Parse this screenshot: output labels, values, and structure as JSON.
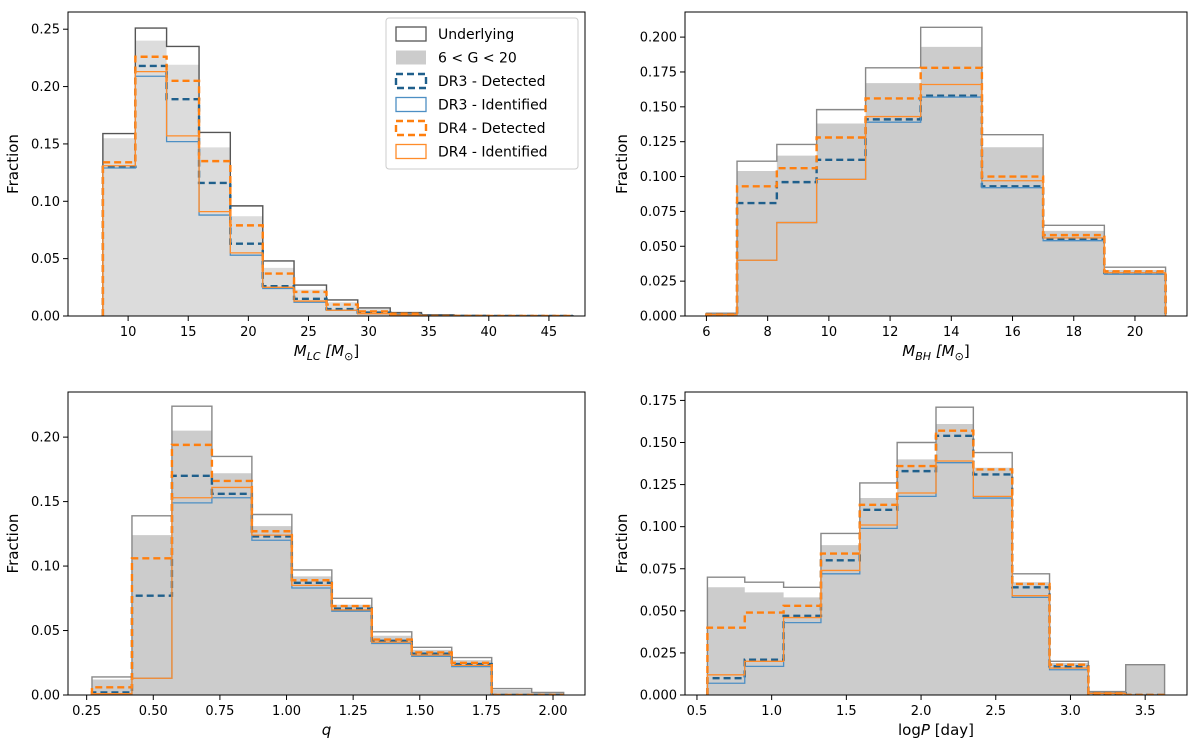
{
  "chart_data": [
    {
      "type": "bar",
      "panel": "top-left",
      "xlabel": "M_LC [M_sun]",
      "xlabel_main": "M",
      "xlabel_sub": "LC",
      "xlabel_unit": "[M",
      "xlabel_unit_sub": "⊙",
      "xlabel_close": "]",
      "ylabel": "Fraction",
      "xlim": [
        5,
        48
      ],
      "ylim": [
        0,
        0.265
      ],
      "xticks": [
        10,
        15,
        20,
        25,
        30,
        35,
        40,
        45
      ],
      "yticks": [
        0.0,
        0.05,
        0.1,
        0.15,
        0.2,
        0.25
      ],
      "ytick_labels": [
        "0.00",
        "0.05",
        "0.10",
        "0.15",
        "0.20",
        "0.25"
      ],
      "bin_edges": [
        7.9,
        10.6,
        13.2,
        15.9,
        18.5,
        21.2,
        23.8,
        26.5,
        29.1,
        31.8,
        34.4,
        37.1,
        39.7,
        42.4,
        45.0,
        47.0
      ],
      "series": [
        {
          "name": "Underlying",
          "style": "step",
          "color": "#555555",
          "dash": false,
          "width": 1.4,
          "values": [
            0.159,
            0.251,
            0.235,
            0.16,
            0.096,
            0.048,
            0.027,
            0.014,
            0.007,
            0.003,
            0.001,
            0.0005,
            0.0003,
            0.0002,
            0.0001
          ]
        },
        {
          "name": "6 < G < 20",
          "style": "fill",
          "color": "#dcdcdc",
          "values": [
            0.155,
            0.24,
            0.219,
            0.147,
            0.087,
            0.042,
            0.023,
            0.012,
            0.006,
            0.003,
            0.001,
            0.0005,
            0.0003,
            0.0002,
            0.0001
          ]
        },
        {
          "name": "DR3 - Detected",
          "style": "step",
          "color": "#1f5f8b",
          "dash": true,
          "width": 2.4,
          "values": [
            0.13,
            0.218,
            0.189,
            0.116,
            0.063,
            0.026,
            0.015,
            0.006,
            0.003,
            0.001,
            0.0,
            0.0,
            0.0,
            0.0,
            0.0
          ]
        },
        {
          "name": "DR3 - Identified",
          "style": "step",
          "color": "#4d8fc4",
          "dash": false,
          "width": 1.3,
          "values": [
            0.129,
            0.209,
            0.152,
            0.088,
            0.053,
            0.024,
            0.012,
            0.005,
            0.002,
            0.0008,
            0.0,
            0.0,
            0.0,
            0.0,
            0.0
          ]
        },
        {
          "name": "DR4 - Detected",
          "style": "step",
          "color": "#ff7f0e",
          "dash": true,
          "width": 2.4,
          "values": [
            0.134,
            0.226,
            0.205,
            0.135,
            0.079,
            0.037,
            0.021,
            0.01,
            0.004,
            0.002,
            0.0,
            0.0,
            0.0,
            0.0,
            0.0
          ]
        },
        {
          "name": "DR4 - Identified",
          "style": "step",
          "color": "#ff8c2a",
          "dash": false,
          "width": 1.3,
          "values": [
            0.131,
            0.213,
            0.157,
            0.091,
            0.055,
            0.025,
            0.013,
            0.005,
            0.002,
            0.0008,
            0.0,
            0.0,
            0.0,
            0.0,
            0.0
          ]
        }
      ]
    },
    {
      "type": "bar",
      "panel": "top-right",
      "xlabel": "M_BH [M_sun]",
      "xlabel_main": "M",
      "xlabel_sub": "BH",
      "xlabel_unit": "[M",
      "xlabel_unit_sub": "⊙",
      "xlabel_close": "]",
      "ylabel": "Fraction",
      "xlim": [
        5.3,
        21.7
      ],
      "ylim": [
        0,
        0.218
      ],
      "xticks": [
        6,
        8,
        10,
        12,
        14,
        16,
        18,
        20
      ],
      "yticks": [
        0.0,
        0.025,
        0.05,
        0.075,
        0.1,
        0.125,
        0.15,
        0.175,
        0.2
      ],
      "ytick_labels": [
        "0.000",
        "0.025",
        "0.050",
        "0.075",
        "0.100",
        "0.125",
        "0.150",
        "0.175",
        "0.200"
      ],
      "bin_edges": [
        6.0,
        7.0,
        8.3,
        9.6,
        11.2,
        13.0,
        15.0,
        17.0,
        19.0,
        21.0
      ],
      "series": [
        {
          "name": "Underlying",
          "style": "step",
          "color": "#888888",
          "dash": false,
          "width": 1.4,
          "values": [
            0.002,
            0.111,
            0.123,
            0.148,
            0.178,
            0.207,
            0.13,
            0.065,
            0.035
          ]
        },
        {
          "name": "6 < G < 20",
          "style": "fill",
          "color": "#cccccc",
          "values": [
            0.002,
            0.104,
            0.115,
            0.138,
            0.167,
            0.193,
            0.121,
            0.061,
            0.033
          ]
        },
        {
          "name": "DR3 - Detected",
          "style": "step",
          "color": "#1f5f8b",
          "dash": true,
          "width": 2.4,
          "values": [
            0.001,
            0.081,
            0.096,
            0.112,
            0.141,
            0.158,
            0.093,
            0.055,
            0.031
          ]
        },
        {
          "name": "DR3 - Identified",
          "style": "step",
          "color": "#4d8fc4",
          "dash": false,
          "width": 1.3,
          "values": [
            0.001,
            0.04,
            0.067,
            0.098,
            0.139,
            0.157,
            0.092,
            0.054,
            0.03
          ]
        },
        {
          "name": "DR4 - Detected",
          "style": "step",
          "color": "#ff7f0e",
          "dash": true,
          "width": 2.4,
          "values": [
            0.001,
            0.093,
            0.106,
            0.128,
            0.156,
            0.178,
            0.1,
            0.058,
            0.032
          ]
        },
        {
          "name": "DR4 - Identified",
          "style": "step",
          "color": "#ff8c2a",
          "dash": false,
          "width": 1.3,
          "values": [
            0.001,
            0.04,
            0.067,
            0.098,
            0.143,
            0.166,
            0.097,
            0.056,
            0.031
          ]
        }
      ]
    },
    {
      "type": "bar",
      "panel": "bottom-left",
      "xlabel": "q",
      "xlabel_main": "q",
      "ylabel": "Fraction",
      "xlim": [
        0.18,
        2.12
      ],
      "ylim": [
        0,
        0.235
      ],
      "xticks": [
        0.25,
        0.5,
        0.75,
        1.0,
        1.25,
        1.5,
        1.75,
        2.0
      ],
      "xtick_labels": [
        "0.25",
        "0.50",
        "0.75",
        "1.00",
        "1.25",
        "1.50",
        "1.75",
        "2.00"
      ],
      "yticks": [
        0.0,
        0.05,
        0.1,
        0.15,
        0.2
      ],
      "ytick_labels": [
        "0.00",
        "0.05",
        "0.10",
        "0.15",
        "0.20"
      ],
      "bin_edges": [
        0.27,
        0.42,
        0.57,
        0.72,
        0.87,
        1.02,
        1.17,
        1.32,
        1.47,
        1.62,
        1.77,
        1.92,
        2.04
      ],
      "series": [
        {
          "name": "Underlying",
          "style": "step",
          "color": "#888888",
          "dash": false,
          "width": 1.4,
          "values": [
            0.014,
            0.139,
            0.224,
            0.185,
            0.14,
            0.097,
            0.075,
            0.049,
            0.037,
            0.029,
            0.005,
            0.002
          ]
        },
        {
          "name": "6 < G < 20",
          "style": "fill",
          "color": "#cccccc",
          "values": [
            0.012,
            0.124,
            0.205,
            0.172,
            0.131,
            0.092,
            0.07,
            0.046,
            0.035,
            0.027,
            0.004,
            0.002
          ]
        },
        {
          "name": "DR3 - Detected",
          "style": "step",
          "color": "#1f5f8b",
          "dash": true,
          "width": 2.4,
          "values": [
            0.002,
            0.077,
            0.17,
            0.156,
            0.123,
            0.087,
            0.067,
            0.042,
            0.032,
            0.024,
            0.0,
            0.0
          ]
        },
        {
          "name": "DR3 - Identified",
          "style": "step",
          "color": "#4d8fc4",
          "dash": false,
          "width": 1.3,
          "values": [
            0.001,
            0.013,
            0.149,
            0.153,
            0.12,
            0.083,
            0.065,
            0.04,
            0.03,
            0.022,
            0.0,
            0.0
          ]
        },
        {
          "name": "DR4 - Detected",
          "style": "step",
          "color": "#ff7f0e",
          "dash": true,
          "width": 2.4,
          "values": [
            0.006,
            0.106,
            0.194,
            0.166,
            0.127,
            0.089,
            0.069,
            0.043,
            0.033,
            0.025,
            0.0,
            0.0
          ]
        },
        {
          "name": "DR4 - Identified",
          "style": "step",
          "color": "#ff8c2a",
          "dash": false,
          "width": 1.3,
          "values": [
            0.001,
            0.013,
            0.153,
            0.161,
            0.124,
            0.085,
            0.066,
            0.041,
            0.031,
            0.023,
            0.0,
            0.0
          ]
        }
      ]
    },
    {
      "type": "bar",
      "panel": "bottom-right",
      "xlabel": "logP [day]",
      "xlabel_main": "log",
      "xlabel_italic": "P",
      "xlabel_unit_text": " [day]",
      "ylabel": "Fraction",
      "xlim": [
        0.42,
        3.78
      ],
      "ylim": [
        0,
        0.18
      ],
      "xticks": [
        0.5,
        1.0,
        1.5,
        2.0,
        2.5,
        3.0,
        3.5
      ],
      "xtick_labels": [
        "0.5",
        "1.0",
        "1.5",
        "2.0",
        "2.5",
        "3.0",
        "3.5"
      ],
      "yticks": [
        0.0,
        0.025,
        0.05,
        0.075,
        0.1,
        0.125,
        0.15,
        0.175
      ],
      "ytick_labels": [
        "0.000",
        "0.025",
        "0.050",
        "0.075",
        "0.100",
        "0.125",
        "0.150",
        "0.175"
      ],
      "bin_edges": [
        0.57,
        0.82,
        1.08,
        1.33,
        1.59,
        1.84,
        2.1,
        2.35,
        2.61,
        2.86,
        3.12,
        3.37,
        3.63
      ],
      "series": [
        {
          "name": "Underlying",
          "style": "step",
          "color": "#888888",
          "dash": false,
          "width": 1.4,
          "values": [
            0.07,
            0.067,
            0.064,
            0.096,
            0.126,
            0.15,
            0.171,
            0.144,
            0.072,
            0.02,
            0.002,
            0.018
          ]
        },
        {
          "name": "6 < G < 20",
          "style": "fill",
          "color": "#cccccc",
          "values": [
            0.064,
            0.061,
            0.058,
            0.089,
            0.117,
            0.14,
            0.161,
            0.135,
            0.067,
            0.019,
            0.002,
            0.018
          ]
        },
        {
          "name": "DR3 - Detected",
          "style": "step",
          "color": "#1f5f8b",
          "dash": true,
          "width": 2.4,
          "values": [
            0.01,
            0.021,
            0.047,
            0.08,
            0.11,
            0.133,
            0.154,
            0.131,
            0.064,
            0.017,
            0.001,
            0.0
          ]
        },
        {
          "name": "DR3 - Identified",
          "style": "step",
          "color": "#4d8fc4",
          "dash": false,
          "width": 1.3,
          "values": [
            0.007,
            0.017,
            0.043,
            0.072,
            0.099,
            0.118,
            0.138,
            0.117,
            0.058,
            0.015,
            0.001,
            0.0
          ]
        },
        {
          "name": "DR4 - Detected",
          "style": "step",
          "color": "#ff7f0e",
          "dash": true,
          "width": 2.4,
          "values": [
            0.04,
            0.049,
            0.053,
            0.084,
            0.113,
            0.136,
            0.157,
            0.134,
            0.066,
            0.018,
            0.001,
            0.0
          ]
        },
        {
          "name": "DR4 - Identified",
          "style": "step",
          "color": "#ff8c2a",
          "dash": false,
          "width": 1.3,
          "values": [
            0.012,
            0.02,
            0.046,
            0.074,
            0.101,
            0.12,
            0.139,
            0.118,
            0.059,
            0.016,
            0.001,
            0.0
          ]
        }
      ]
    }
  ],
  "legend": {
    "placement": "top-right",
    "entries": [
      {
        "label_text": "Underlying",
        "kind": "outline",
        "color": "#555555"
      },
      {
        "label_text": "6 < G < 20",
        "kind": "fill",
        "color": "#cccccc"
      },
      {
        "label_text": "DR3 - Detected",
        "kind": "dash",
        "color": "#1f5f8b"
      },
      {
        "label_text": "DR3 - Identified",
        "kind": "outline",
        "color": "#4d8fc4"
      },
      {
        "label_text": "DR4 - Detected",
        "kind": "dash",
        "color": "#ff7f0e"
      },
      {
        "label_text": "DR4 - Identified",
        "kind": "outline",
        "color": "#ff8c2a"
      }
    ]
  }
}
